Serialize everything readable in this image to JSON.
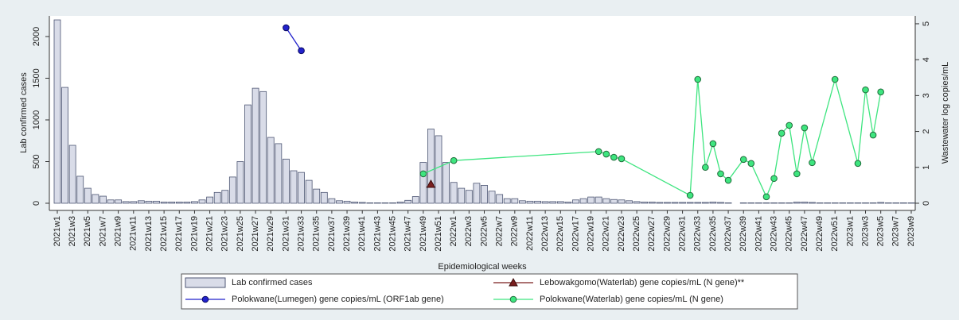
{
  "chart_data": {
    "type": "combo",
    "y_title": "Lab confirmed cases",
    "y2_title": "Wastewater log copies/mL",
    "x_title": "Epidemiological weeks",
    "categories": [
      "2021w1",
      null,
      "2021w3",
      null,
      "2021w5",
      null,
      "2021w7",
      null,
      "2021w9",
      null,
      "2021w11",
      null,
      "2021w13",
      null,
      "2021w15",
      null,
      "2021w17",
      null,
      "2021w19",
      null,
      "2021w21",
      null,
      "2021w23",
      null,
      "2021w25",
      null,
      "2021w27",
      null,
      "2021w29",
      null,
      "2021w31",
      null,
      "2021w33",
      null,
      "2021w35",
      null,
      "2021w37",
      null,
      "2021w39",
      null,
      "2021w41",
      null,
      "2021w43",
      null,
      "2021w45",
      null,
      "2021w47",
      null,
      "2021w49",
      null,
      "2021w51",
      null,
      "2022w1",
      null,
      "2022w3",
      null,
      "2022w5",
      null,
      "2022w7",
      null,
      "2022w9",
      null,
      "2022w11",
      null,
      "2022w13",
      null,
      "2022w15",
      null,
      "2022w17",
      null,
      "2022w19",
      null,
      "2022w21",
      null,
      "2022w23",
      null,
      "2022w25",
      null,
      "2022w27",
      null,
      "2022w29",
      null,
      "2022w31",
      null,
      "2022w33",
      null,
      "2022w35",
      null,
      "2022w37",
      null,
      "2022w39",
      null,
      "2022w41",
      null,
      "2022w43",
      null,
      "2022w45",
      null,
      "2022w47",
      null,
      "2022w49",
      null,
      "2022w51",
      null,
      "2023w1",
      null,
      "2023w3",
      null,
      "2023w5",
      null,
      "2023w7",
      null,
      "2023w9"
    ],
    "ylim": [
      -86,
      2248
    ],
    "yticks": [
      0,
      500,
      1000,
      1500,
      2000
    ],
    "y2lim": [
      -0.2,
      5.22
    ],
    "y2ticks": [
      0,
      1,
      2,
      3,
      4,
      5
    ],
    "series": [
      {
        "name": "Lab confirmed cases",
        "type": "bar",
        "color": "#d9dce8",
        "edge": "#4d5673",
        "values": [
          2200,
          1390,
          695,
          324,
          180,
          105,
          85,
          40,
          40,
          20,
          20,
          30,
          25,
          25,
          15,
          15,
          15,
          15,
          20,
          40,
          75,
          130,
          155,
          315,
          500,
          1180,
          1380,
          1340,
          790,
          715,
          530,
          390,
          370,
          275,
          170,
          130,
          55,
          30,
          25,
          15,
          10,
          5,
          5,
          5,
          5,
          15,
          35,
          80,
          490,
          890,
          810,
          490,
          250,
          180,
          155,
          240,
          215,
          145,
          105,
          55,
          55,
          30,
          25,
          25,
          20,
          20,
          20,
          15,
          40,
          55,
          75,
          75,
          55,
          45,
          40,
          30,
          20,
          15,
          15,
          10,
          10,
          10,
          10,
          10,
          10,
          10,
          15,
          10,
          5,
          0,
          5,
          5,
          5,
          5,
          5,
          5,
          5,
          15,
          15,
          10,
          5,
          5,
          5,
          5,
          5,
          5,
          5,
          5,
          10,
          5,
          5,
          5,
          5
        ]
      },
      {
        "name": "Lebowakgomo(Waterlab) gene copies/mL (N gene)**",
        "type": "line",
        "axis": "y2",
        "marker": "triangle",
        "color": "#7a1f1f",
        "edge": "#3d0d0d",
        "values": [
          null,
          null,
          null,
          null,
          null,
          null,
          null,
          null,
          null,
          null,
          null,
          null,
          null,
          null,
          null,
          null,
          null,
          null,
          null,
          null,
          null,
          null,
          null,
          null,
          null,
          null,
          null,
          null,
          null,
          null,
          null,
          null,
          null,
          null,
          null,
          null,
          null,
          null,
          null,
          null,
          null,
          null,
          null,
          null,
          null,
          null,
          null,
          null,
          null,
          0.53,
          null,
          null,
          null,
          null,
          null,
          null,
          null,
          null,
          null,
          null,
          null,
          null,
          null,
          null,
          null,
          null,
          null,
          null,
          null,
          null,
          null,
          null,
          null,
          null,
          null,
          null,
          null,
          null,
          null,
          null,
          null,
          null,
          null,
          null,
          null,
          null,
          null,
          null,
          null,
          null,
          null,
          null,
          null,
          null,
          null,
          null,
          null,
          null,
          null,
          null,
          null,
          null,
          null,
          null,
          null,
          null,
          null,
          null,
          null,
          null,
          null,
          null,
          null
        ]
      },
      {
        "name": "Polokwane(Lumegen) gene copies/mL (ORF1ab gene)",
        "type": "line",
        "axis": "y2",
        "marker": "circle",
        "color": "#2222cc",
        "edge": "#0a0a60",
        "values": [
          null,
          null,
          null,
          null,
          null,
          null,
          null,
          null,
          null,
          null,
          null,
          null,
          null,
          null,
          null,
          null,
          null,
          null,
          null,
          null,
          null,
          null,
          null,
          null,
          null,
          null,
          null,
          null,
          null,
          null,
          4.89,
          null,
          4.25,
          null,
          null,
          null,
          null,
          null,
          null,
          null,
          null,
          null,
          null,
          null,
          null,
          null,
          null,
          null,
          null,
          null,
          null,
          null,
          null,
          null,
          null,
          null,
          null,
          null,
          null,
          null,
          null,
          null,
          null,
          null,
          null,
          null,
          null,
          null,
          null,
          null,
          null,
          null,
          null,
          null,
          null,
          null,
          null,
          null,
          null,
          null,
          null,
          null,
          null,
          null,
          null,
          null,
          null,
          null,
          null,
          null,
          null,
          null,
          null,
          null,
          null,
          null,
          null,
          null,
          null,
          null,
          null,
          null,
          null,
          null,
          null,
          null,
          null,
          null,
          null,
          null,
          null,
          null,
          null
        ]
      },
      {
        "name": "Polokwane(Waterlab) gene copies/mL (N gene)",
        "type": "line",
        "axis": "y2",
        "marker": "circle",
        "color": "#3ee57f",
        "edge": "#1f6b3a",
        "values": [
          null,
          null,
          null,
          null,
          null,
          null,
          null,
          null,
          null,
          null,
          null,
          null,
          null,
          null,
          null,
          null,
          null,
          null,
          null,
          null,
          null,
          null,
          null,
          null,
          null,
          null,
          null,
          null,
          null,
          null,
          null,
          null,
          null,
          null,
          null,
          null,
          null,
          null,
          null,
          null,
          null,
          null,
          null,
          null,
          null,
          null,
          null,
          null,
          0.82,
          null,
          null,
          null,
          1.19,
          null,
          null,
          null,
          null,
          null,
          null,
          null,
          null,
          null,
          null,
          null,
          null,
          null,
          null,
          null,
          null,
          null,
          null,
          1.44,
          1.37,
          1.28,
          1.24,
          null,
          null,
          null,
          null,
          null,
          null,
          null,
          null,
          0.22,
          3.45,
          1.0,
          1.66,
          0.82,
          0.64,
          null,
          1.22,
          1.11,
          null,
          0.18,
          0.69,
          1.95,
          2.17,
          0.82,
          2.1,
          1.13,
          null,
          null,
          3.45,
          null,
          null,
          1.11,
          3.16,
          1.9,
          3.1,
          null,
          null,
          null,
          null
        ]
      }
    ]
  }
}
